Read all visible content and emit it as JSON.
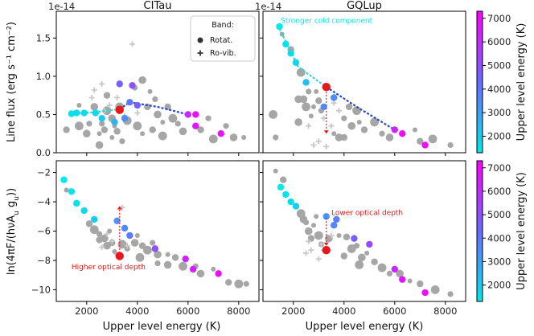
{
  "colors": {
    "cmap_low": "#00eaea",
    "cmap_mid": "#6a6aff",
    "cmap_high": "#ff00ff",
    "gray": "#a6a6a6",
    "ro_vib": "#c8c8c8",
    "red": "#e8171a",
    "dash_cold": "#2fd7d7",
    "dash_warm": "#2a47c8",
    "frame": "#000000"
  },
  "chart_data": [
    {
      "id": "top-left",
      "type": "scatter",
      "title": "CITau",
      "offset_text": "1e-14",
      "xlabel": "",
      "ylabel": "Line flux (erg s⁻¹ cm⁻²)",
      "xlim": [
        800,
        8800
      ],
      "ylim": [
        0,
        1.85
      ],
      "yticks": [
        0.0,
        0.5,
        1.0,
        1.5
      ],
      "yticklabels": [
        "0.0",
        "0.5",
        "1.0",
        "1.5"
      ],
      "legend": {
        "title": "Band:",
        "items": [
          "Rotat.",
          "Ro-vib."
        ],
        "position": "top-right"
      },
      "rotational": [
        [
          1400,
          0.51,
          1500
        ],
        [
          1600,
          0.52,
          1600
        ],
        [
          1900,
          0.52,
          1700
        ],
        [
          2350,
          0.52,
          1800
        ],
        [
          2600,
          0.45,
          2000
        ],
        [
          3300,
          0.56,
          3600
        ],
        [
          3700,
          0.66,
          4000
        ],
        [
          4000,
          0.62,
          4500
        ],
        [
          3300,
          0.9,
          4600
        ],
        [
          3800,
          0.88,
          5000
        ],
        [
          6000,
          0.5,
          6200
        ],
        [
          6300,
          0.5,
          6900
        ],
        [
          6300,
          0.35,
          6700
        ],
        [
          7300,
          0.25,
          6800
        ],
        [
          3500,
          0.45,
          3400
        ],
        [
          3100,
          0.4,
          2600
        ]
      ],
      "gray": [
        [
          1700,
          0.62
        ],
        [
          1200,
          0.3
        ],
        [
          1700,
          0.35
        ],
        [
          2100,
          0.38
        ],
        [
          2000,
          0.25
        ],
        [
          2500,
          0.25
        ],
        [
          2700,
          0.3
        ],
        [
          2800,
          0.55
        ],
        [
          2600,
          0.38
        ],
        [
          3000,
          0.45
        ],
        [
          3100,
          0.35
        ],
        [
          3200,
          0.28
        ],
        [
          3600,
          0.42
        ],
        [
          3900,
          0.85
        ],
        [
          4200,
          0.95
        ],
        [
          4500,
          0.8
        ],
        [
          4400,
          0.6
        ],
        [
          4000,
          0.35
        ],
        [
          4700,
          0.7
        ],
        [
          4800,
          0.5
        ],
        [
          5000,
          0.4
        ],
        [
          5200,
          0.6
        ],
        [
          5400,
          0.45
        ],
        [
          5600,
          0.38
        ],
        [
          5800,
          0.28
        ],
        [
          4200,
          0.25
        ],
        [
          4600,
          0.3
        ],
        [
          5000,
          0.22
        ],
        [
          3400,
          0.15
        ],
        [
          2500,
          0.1
        ],
        [
          3000,
          0.2
        ],
        [
          6500,
          0.3
        ],
        [
          7000,
          0.18
        ],
        [
          7500,
          0.35
        ],
        [
          7800,
          0.2
        ],
        [
          8200,
          0.2
        ],
        [
          2800,
          0.75
        ],
        [
          3300,
          0.6
        ],
        [
          6800,
          0.45
        ],
        [
          2300,
          0.6
        ]
      ],
      "rovib": [
        [
          3800,
          1.42
        ],
        [
          2300,
          0.82
        ],
        [
          2600,
          0.9
        ],
        [
          2200,
          0.72
        ],
        [
          2900,
          0.62
        ],
        [
          3200,
          0.72
        ],
        [
          2700,
          0.55
        ],
        [
          3500,
          0.48
        ],
        [
          4000,
          0.52
        ]
      ],
      "highlight": [
        3300,
        0.56
      ],
      "trend_cold": [
        [
          1350,
          0.51
        ],
        [
          2300,
          0.53
        ],
        [
          3300,
          0.57
        ]
      ],
      "trend_warm": [
        [
          3300,
          0.57
        ],
        [
          3700,
          0.66
        ],
        [
          4800,
          0.6
        ],
        [
          6000,
          0.5
        ]
      ],
      "annotation": null
    },
    {
      "id": "top-right",
      "type": "scatter",
      "title": "GQLup",
      "offset_text": "1e-14",
      "xlabel": "",
      "ylabel": "",
      "xlim": [
        800,
        8800
      ],
      "ylim": [
        0,
        1.85
      ],
      "yticks": [
        0.0,
        0.5,
        1.0,
        1.5
      ],
      "yticklabels": [
        "",
        "",
        "",
        ""
      ],
      "colorbar": {
        "label": "Upper level energy (K)",
        "min": 1300,
        "max": 7300,
        "ticks": [
          2000,
          3000,
          4000,
          5000,
          6000,
          7000
        ],
        "ticklabels": [
          "2000",
          "3000",
          "4000",
          "5000",
          "6000",
          "7000"
        ]
      },
      "rotational": [
        [
          1450,
          1.65,
          1300
        ],
        [
          1700,
          1.42,
          1500
        ],
        [
          1900,
          1.3,
          1650
        ],
        [
          2100,
          1.18,
          1800
        ],
        [
          2500,
          0.92,
          2300
        ],
        [
          3300,
          0.86,
          3200
        ],
        [
          3600,
          0.72,
          3500
        ],
        [
          6000,
          0.3,
          6200
        ],
        [
          6300,
          0.25,
          6900
        ],
        [
          7200,
          0.1,
          7000
        ],
        [
          3200,
          0.6,
          3600
        ]
      ],
      "gray": [
        [
          1550,
          1.55
        ],
        [
          1900,
          1.35
        ],
        [
          2300,
          1.05
        ],
        [
          2600,
          0.8
        ],
        [
          2200,
          0.7
        ],
        [
          2800,
          0.6
        ],
        [
          3000,
          0.68
        ],
        [
          2500,
          0.6
        ],
        [
          3100,
          0.55
        ],
        [
          2200,
          0.4
        ],
        [
          2700,
          0.48
        ],
        [
          4200,
          0.6
        ],
        [
          4500,
          0.55
        ],
        [
          4000,
          0.45
        ],
        [
          4300,
          0.35
        ],
        [
          4600,
          0.4
        ],
        [
          4800,
          0.3
        ],
        [
          5200,
          0.4
        ],
        [
          5500,
          0.25
        ],
        [
          5800,
          0.2
        ],
        [
          6800,
          0.3
        ],
        [
          7000,
          0.15
        ],
        [
          7500,
          0.18
        ],
        [
          8200,
          0.1
        ],
        [
          3800,
          0.2
        ],
        [
          3600,
          0.25
        ],
        [
          4000,
          0.2
        ],
        [
          1200,
          0.5
        ],
        [
          1300,
          0.2
        ],
        [
          2400,
          0.7
        ],
        [
          2900,
          0.8
        ]
      ],
      "rovib": [
        [
          3600,
          0.65
        ],
        [
          3800,
          0.55
        ],
        [
          3200,
          0.45
        ],
        [
          3500,
          0.35
        ],
        [
          3000,
          0.15
        ],
        [
          2800,
          0.1
        ],
        [
          3300,
          0.08
        ],
        [
          2600,
          0.35
        ]
      ],
      "highlight": [
        3300,
        0.86
      ],
      "trend_cold": [
        [
          1450,
          1.62
        ],
        [
          2200,
          1.12
        ],
        [
          3300,
          0.86
        ]
      ],
      "trend_warm": [
        [
          3300,
          0.86
        ],
        [
          4500,
          0.6
        ],
        [
          6000,
          0.3
        ]
      ],
      "annotation": {
        "text": "Stronger cold component",
        "at": [
          1500,
          1.7
        ]
      }
    },
    {
      "id": "bottom-left",
      "type": "scatter",
      "title": "",
      "offset_text": "",
      "xlabel": "Upper level energy (K)",
      "ylabel": "ln(4πF/(hνA_u g_u))",
      "xlim": [
        800,
        8800
      ],
      "ylim": [
        -10.8,
        -1.2
      ],
      "xticks": [
        2000,
        4000,
        6000,
        8000
      ],
      "xticklabels": [
        "2000",
        "4000",
        "6000",
        "8000"
      ],
      "yticks": [
        -10,
        -8,
        -6,
        -4,
        -2
      ],
      "yticklabels": [
        "−10",
        "−8",
        "−6",
        "−4",
        "−2"
      ],
      "rotational": [
        [
          1100,
          -2.5,
          1200
        ],
        [
          1400,
          -3.3,
          1400
        ],
        [
          1600,
          -4.1,
          1500
        ],
        [
          1900,
          -4.6,
          1700
        ],
        [
          2300,
          -5.2,
          2000
        ],
        [
          3300,
          -7.7,
          3500
        ],
        [
          3500,
          -5.8,
          3600
        ],
        [
          3700,
          -6.3,
          3900
        ],
        [
          3200,
          -5.3,
          3300
        ],
        [
          5900,
          -7.9,
          6300
        ],
        [
          6200,
          -8.6,
          6500
        ],
        [
          7200,
          -8.9,
          6900
        ],
        [
          4700,
          -7.2,
          5000
        ]
      ],
      "gray": [
        [
          1200,
          -3.2
        ],
        [
          2100,
          -5.5
        ],
        [
          2300,
          -5.9
        ],
        [
          2500,
          -6.2
        ],
        [
          2700,
          -6.5
        ],
        [
          2900,
          -6.0
        ],
        [
          3000,
          -6.8
        ],
        [
          3400,
          -6.9
        ],
        [
          3600,
          -7.2
        ],
        [
          3900,
          -6.8
        ],
        [
          4000,
          -6.3
        ],
        [
          4200,
          -7.0
        ],
        [
          4400,
          -7.3
        ],
        [
          4600,
          -6.8
        ],
        [
          4800,
          -7.6
        ],
        [
          5200,
          -7.6
        ],
        [
          5500,
          -7.8
        ],
        [
          5800,
          -8.4
        ],
        [
          6300,
          -8.4
        ],
        [
          6500,
          -8.9
        ],
        [
          7000,
          -8.6
        ],
        [
          7600,
          -9.5
        ],
        [
          8000,
          -9.6
        ],
        [
          8300,
          -9.6
        ],
        [
          2800,
          -7.0
        ],
        [
          3100,
          -7.4
        ],
        [
          2500,
          -6.6
        ],
        [
          4100,
          -7.8
        ],
        [
          4800,
          -8.2
        ],
        [
          5200,
          -8.3
        ]
      ],
      "rovib": [
        [
          3400,
          -4.4
        ],
        [
          2800,
          -6.2
        ],
        [
          3000,
          -6.7
        ],
        [
          3600,
          -7.0
        ],
        [
          2600,
          -7.1
        ],
        [
          3200,
          -7.6
        ]
      ],
      "highlight": [
        3300,
        -7.7
      ],
      "arrow": {
        "from": [
          3300,
          -7.5
        ],
        "to": [
          3300,
          -4.3
        ]
      },
      "annotation": {
        "text": "Higher optical depth",
        "at": [
          1400,
          -8.6
        ]
      }
    },
    {
      "id": "bottom-right",
      "type": "scatter",
      "title": "",
      "offset_text": "",
      "xlabel": "Upper level energy (K)",
      "ylabel": "",
      "xlim": [
        800,
        8800
      ],
      "ylim": [
        -10.8,
        -1.2
      ],
      "xticks": [
        2000,
        4000,
        6000,
        8000
      ],
      "xticklabels": [
        "2000",
        "4000",
        "6000",
        "8000"
      ],
      "yticks": [
        -10,
        -8,
        -6,
        -4,
        -2
      ],
      "yticklabels": [
        "",
        "",
        "",
        "",
        ""
      ],
      "colorbar": {
        "label": "Upper level energy (K)",
        "min": 1300,
        "max": 7300,
        "ticks": [
          2000,
          3000,
          4000,
          5000,
          6000,
          7000
        ],
        "ticklabels": [
          "2000",
          "3000",
          "4000",
          "5000",
          "6000",
          "7000"
        ]
      },
      "rotational": [
        [
          1500,
          -3.0,
          1300
        ],
        [
          1700,
          -3.5,
          1500
        ],
        [
          1900,
          -4.0,
          1700
        ],
        [
          2100,
          -4.3,
          1900
        ],
        [
          3300,
          -7.3,
          3400
        ],
        [
          3300,
          -5.0,
          3300
        ],
        [
          3600,
          -5.6,
          3700
        ],
        [
          3700,
          -5.2,
          3800
        ],
        [
          5000,
          -6.9,
          5200
        ],
        [
          6000,
          -8.6,
          6200
        ],
        [
          6300,
          -9.3,
          6800
        ],
        [
          7200,
          -10.2,
          7000
        ],
        [
          4400,
          -6.5,
          4600
        ]
      ],
      "gray": [
        [
          1300,
          -1.9
        ],
        [
          1600,
          -2.5
        ],
        [
          2300,
          -4.8
        ],
        [
          2500,
          -5.4
        ],
        [
          2600,
          -6.0
        ],
        [
          2800,
          -5.6
        ],
        [
          2700,
          -6.5
        ],
        [
          3000,
          -6.3
        ],
        [
          3100,
          -6.9
        ],
        [
          3400,
          -6.5
        ],
        [
          3800,
          -6.3
        ],
        [
          4100,
          -6.4
        ],
        [
          4300,
          -7.2
        ],
        [
          4500,
          -7.0
        ],
        [
          4700,
          -7.8
        ],
        [
          4900,
          -7.5
        ],
        [
          5200,
          -8.1
        ],
        [
          5500,
          -8.5
        ],
        [
          5800,
          -8.9
        ],
        [
          6200,
          -8.9
        ],
        [
          6600,
          -9.4
        ],
        [
          7000,
          -9.6
        ],
        [
          7600,
          -10.0
        ],
        [
          8200,
          -10.3
        ],
        [
          2400,
          -5.2
        ],
        [
          2900,
          -5.0
        ],
        [
          4000,
          -7.7
        ],
        [
          4600,
          -8.3
        ]
      ],
      "rovib": [
        [
          2600,
          -6.7
        ],
        [
          2700,
          -7.3
        ],
        [
          3000,
          -7.9
        ],
        [
          3100,
          -6.9
        ],
        [
          2500,
          -7.5
        ],
        [
          3200,
          -7.3
        ],
        [
          3500,
          -6.3
        ]
      ],
      "highlight": [
        3300,
        -7.3
      ],
      "arrow": {
        "from": [
          3300,
          -5.1
        ],
        "to": [
          3300,
          -7.0
        ]
      },
      "annotation": {
        "text": "Lower optical depth",
        "at": [
          3500,
          -4.9
        ]
      }
    }
  ]
}
